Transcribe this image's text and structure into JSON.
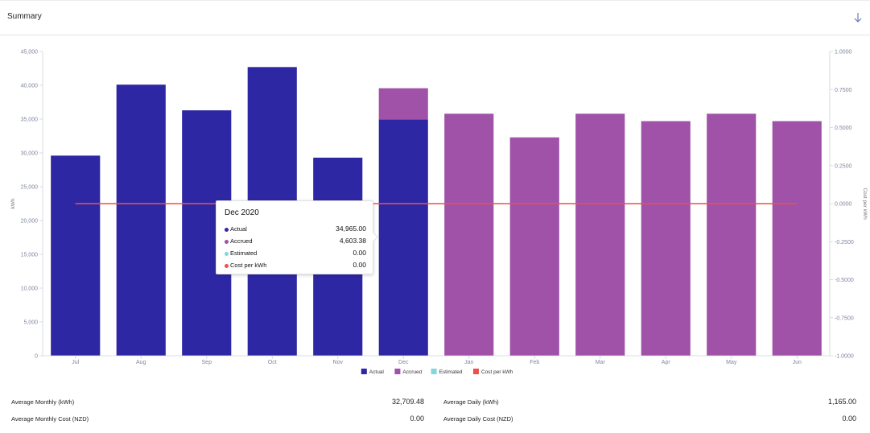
{
  "header": {
    "title": "Summary",
    "download_icon": "arrow-down-icon"
  },
  "chart_data": {
    "type": "bar",
    "stacked": true,
    "categories": [
      "Jul",
      "Aug",
      "Sep",
      "Oct",
      "Nov",
      "Dec",
      "Jan",
      "Feb",
      "Mar",
      "Apr",
      "May",
      "Jun"
    ],
    "series": [
      {
        "name": "Actual",
        "color": "#2e27a3",
        "values": [
          29600,
          40100,
          36300,
          42700,
          29300,
          34965,
          0,
          0,
          0,
          0,
          0,
          0
        ]
      },
      {
        "name": "Accrued",
        "color": "#9f52a7",
        "values": [
          0,
          0,
          0,
          0,
          0,
          4603.38,
          35800,
          32300,
          35800,
          34700,
          35800,
          34700
        ]
      },
      {
        "name": "Estimated",
        "color": "#7fd9de",
        "values": [
          0,
          0,
          0,
          0,
          0,
          0,
          0,
          0,
          0,
          0,
          0,
          0
        ]
      },
      {
        "name": "Cost per kWh",
        "color": "#f0504a",
        "type": "line",
        "axis": "right",
        "values": [
          0,
          0,
          0,
          0,
          0,
          0,
          0,
          0,
          0,
          0,
          0,
          0
        ]
      }
    ],
    "ylabel": "kWh",
    "ylabel_right": "Cost per kWh",
    "ylim": [
      0,
      45000
    ],
    "y_ticks": [
      "0",
      "5,000",
      "10,000",
      "15,000",
      "20,000",
      "25,000",
      "30,000",
      "35,000",
      "40,000",
      "45,000"
    ],
    "ylim_right": [
      -1,
      1
    ],
    "y_right_ticks": [
      "-1.0000",
      "-0.7500",
      "-0.5000",
      "-0.2500",
      "0.0000",
      "0.2500",
      "0.5000",
      "0.7500",
      "1.0000"
    ],
    "legend_position": "bottom-center",
    "grid": false
  },
  "tooltip": {
    "title": "Dec 2020",
    "rows": [
      {
        "label": "Actual",
        "value": "34,965.00",
        "color": "#2e27a3"
      },
      {
        "label": "Accrued",
        "value": "4,603.38",
        "color": "#9f52a7"
      },
      {
        "label": "Estimated",
        "value": "0.00",
        "color": "#7fd9de"
      },
      {
        "label": "Cost per kWh",
        "value": "0.00",
        "color": "#f0504a"
      }
    ]
  },
  "stats": {
    "avg_monthly_kwh_label": "Average Monthly (kWh)",
    "avg_monthly_kwh_value": "32,709.48",
    "avg_monthly_cost_label": "Average Monthly Cost (NZD)",
    "avg_monthly_cost_value": "0.00",
    "avg_daily_kwh_label": "Average Daily (kWh)",
    "avg_daily_kwh_value": "1,165.00",
    "avg_daily_cost_label": "Average Daily Cost (NZD)",
    "avg_daily_cost_value": "0.00"
  }
}
